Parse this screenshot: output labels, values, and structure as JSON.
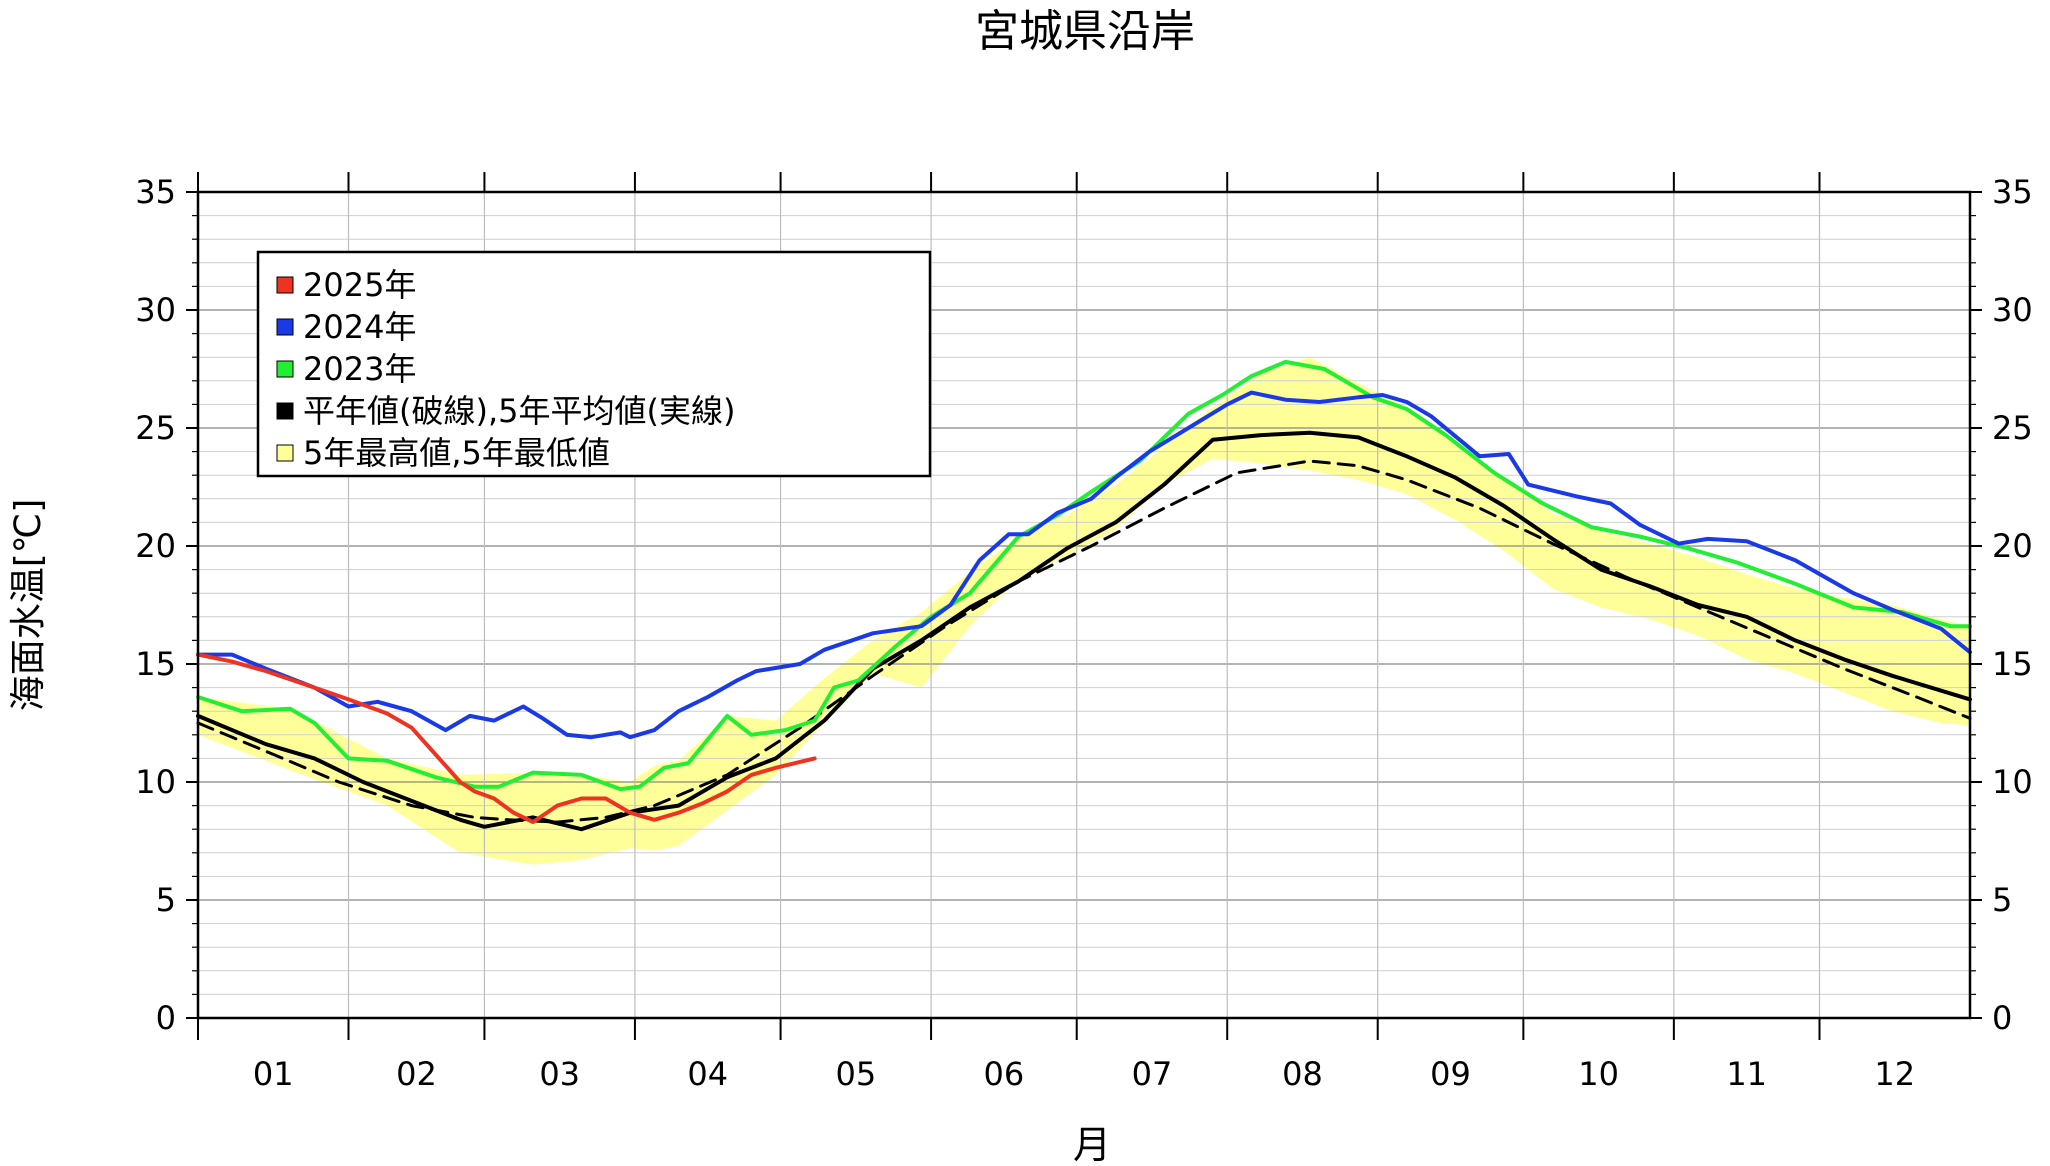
{
  "chart_data": {
    "type": "line",
    "title": "宮城県沿岸",
    "xlabel": "月",
    "ylabel": "海面水温[℃]",
    "ylim": [
      0,
      35
    ],
    "xlim": [
      1,
      366
    ],
    "grid": true,
    "legend_position": "top-left",
    "month_labels": [
      "01",
      "02",
      "03",
      "04",
      "05",
      "06",
      "07",
      "08",
      "09",
      "10",
      "11",
      "12"
    ],
    "month_starts": [
      1,
      32,
      60,
      91,
      121,
      152,
      182,
      213,
      244,
      274,
      305,
      335
    ],
    "y_ticks": [
      0,
      5,
      10,
      15,
      20,
      25,
      30,
      35
    ],
    "legend": [
      {
        "label": "2025年",
        "color": "#ee3322"
      },
      {
        "label": "2024年",
        "color": "#1a3ae8"
      },
      {
        "label": "2023年",
        "color": "#22ee33"
      },
      {
        "label": "平年値(破線),5年平均値(実線)",
        "color": "#000000"
      },
      {
        "label": "5年最高値,5年最低値",
        "color": "#ffff99"
      }
    ],
    "series": [
      {
        "name": "2025年",
        "color": "#ee3322",
        "x": [
          1,
          8,
          15,
          25,
          32,
          40,
          45,
          55,
          58,
          62,
          66,
          70,
          75,
          80,
          85,
          90,
          95,
          100,
          105,
          110,
          115,
          120,
          128
        ],
        "y": [
          15.4,
          15.1,
          14.7,
          14.0,
          13.5,
          12.9,
          12.3,
          10.0,
          9.6,
          9.3,
          8.7,
          8.3,
          9.0,
          9.3,
          9.3,
          8.7,
          8.4,
          8.7,
          9.1,
          9.6,
          10.3,
          10.6,
          11.0
        ]
      },
      {
        "name": "2024年",
        "color": "#1a3ae8",
        "x": [
          1,
          8,
          15,
          25,
          32,
          38,
          45,
          52,
          57,
          62,
          68,
          72,
          77,
          82,
          88,
          90,
          95,
          100,
          106,
          112,
          116,
          125,
          130,
          140,
          150,
          156,
          162,
          168,
          172,
          178,
          185,
          190,
          197,
          205,
          213,
          218,
          225,
          232,
          240,
          245,
          250,
          255,
          265,
          271,
          275,
          285,
          292,
          298,
          306,
          312,
          320,
          330,
          342,
          350,
          360,
          366
        ],
        "y": [
          15.4,
          15.4,
          14.8,
          14.0,
          13.2,
          13.4,
          13.0,
          12.2,
          12.8,
          12.6,
          13.2,
          12.7,
          12.0,
          11.9,
          12.1,
          11.9,
          12.2,
          13.0,
          13.6,
          14.3,
          14.7,
          15.0,
          15.6,
          16.3,
          16.6,
          17.5,
          19.4,
          20.5,
          20.5,
          21.4,
          22.0,
          22.9,
          24.0,
          25.0,
          26.0,
          26.5,
          26.2,
          26.1,
          26.3,
          26.4,
          26.1,
          25.5,
          23.8,
          23.9,
          22.6,
          22.1,
          21.8,
          20.9,
          20.1,
          20.3,
          20.2,
          19.4,
          18.0,
          17.3,
          16.5,
          15.5
        ]
      },
      {
        "name": "2023年",
        "color": "#22ee33",
        "x": [
          1,
          10,
          20,
          25,
          32,
          40,
          50,
          58,
          63,
          70,
          80,
          88,
          92,
          97,
          102,
          110,
          115,
          122,
          128,
          132,
          137,
          145,
          152,
          160,
          170,
          178,
          185,
          195,
          205,
          212,
          218,
          225,
          233,
          243,
          250,
          258,
          268,
          278,
          288,
          298,
          308,
          318,
          330,
          342,
          352,
          362,
          366
        ],
        "y": [
          13.6,
          13.0,
          13.1,
          12.5,
          11.0,
          10.9,
          10.2,
          9.8,
          9.8,
          10.4,
          10.3,
          9.7,
          9.8,
          10.6,
          10.8,
          12.8,
          12.0,
          12.2,
          12.6,
          14.0,
          14.3,
          15.8,
          17.0,
          18.0,
          20.4,
          21.3,
          22.3,
          23.6,
          25.6,
          26.4,
          27.2,
          27.8,
          27.5,
          26.3,
          25.8,
          24.7,
          23.1,
          21.8,
          20.8,
          20.4,
          19.9,
          19.3,
          18.4,
          17.4,
          17.2,
          16.6,
          16.6
        ]
      },
      {
        "name": "5年平均値",
        "color": "#000000",
        "style": "solid",
        "x": [
          1,
          15,
          25,
          35,
          45,
          55,
          60,
          70,
          80,
          90,
          100,
          110,
          120,
          130,
          140,
          150,
          160,
          170,
          180,
          190,
          200,
          210,
          220,
          230,
          240,
          250,
          260,
          270,
          280,
          290,
          300,
          310,
          320,
          330,
          340,
          350,
          366
        ],
        "y": [
          12.8,
          11.6,
          11.0,
          10.0,
          9.2,
          8.4,
          8.1,
          8.5,
          8.0,
          8.7,
          9.0,
          10.2,
          11.0,
          12.6,
          14.8,
          16.0,
          17.4,
          18.5,
          19.9,
          21.0,
          22.6,
          24.5,
          24.7,
          24.8,
          24.6,
          23.8,
          22.9,
          21.7,
          20.3,
          19.0,
          18.3,
          17.5,
          17.0,
          16.0,
          15.2,
          14.5,
          13.5
        ]
      },
      {
        "name": "平年値",
        "color": "#000000",
        "style": "dashed",
        "x": [
          1,
          15,
          30,
          45,
          58,
          65,
          75,
          85,
          95,
          110,
          125,
          140,
          155,
          170,
          185,
          200,
          215,
          230,
          240,
          250,
          265,
          280,
          295,
          310,
          325,
          340,
          355,
          366
        ],
        "y": [
          12.5,
          11.3,
          10.0,
          9.0,
          8.5,
          8.4,
          8.3,
          8.5,
          9.0,
          10.3,
          12.3,
          14.5,
          16.6,
          18.5,
          20.0,
          21.6,
          23.1,
          23.6,
          23.4,
          22.8,
          21.6,
          20.1,
          18.7,
          17.4,
          16.1,
          14.8,
          13.6,
          12.7
        ]
      }
    ],
    "band": {
      "name": "5年最高値,5年最低値",
      "color": "#ffff99",
      "x": [
        1,
        20,
        40,
        55,
        70,
        80,
        90,
        95,
        100,
        110,
        120,
        130,
        140,
        150,
        160,
        170,
        180,
        190,
        200,
        210,
        220,
        230,
        240,
        250,
        260,
        270,
        280,
        290,
        300,
        310,
        320,
        330,
        340,
        350,
        360,
        366
      ],
      "upper": [
        13.6,
        13.1,
        11.0,
        10.3,
        10.4,
        10.3,
        10.0,
        10.7,
        10.9,
        12.8,
        12.6,
        14.4,
        16.0,
        17.2,
        18.9,
        20.4,
        21.3,
        22.6,
        24.2,
        25.9,
        27.3,
        28.0,
        26.9,
        25.9,
        24.3,
        22.8,
        21.4,
        20.6,
        20.1,
        19.5,
        18.8,
        18.2,
        17.8,
        17.5,
        16.9,
        16.6
      ],
      "lower": [
        12.0,
        10.5,
        9.0,
        7.0,
        6.5,
        6.7,
        7.2,
        7.1,
        7.3,
        8.8,
        10.3,
        12.5,
        14.6,
        14.0,
        16.6,
        18.6,
        19.6,
        20.7,
        22.6,
        23.7,
        23.5,
        23.2,
        22.8,
        22.2,
        21.1,
        19.8,
        18.2,
        17.4,
        16.9,
        16.2,
        15.2,
        14.6,
        13.8,
        13.0,
        12.5,
        12.4
      ]
    }
  }
}
